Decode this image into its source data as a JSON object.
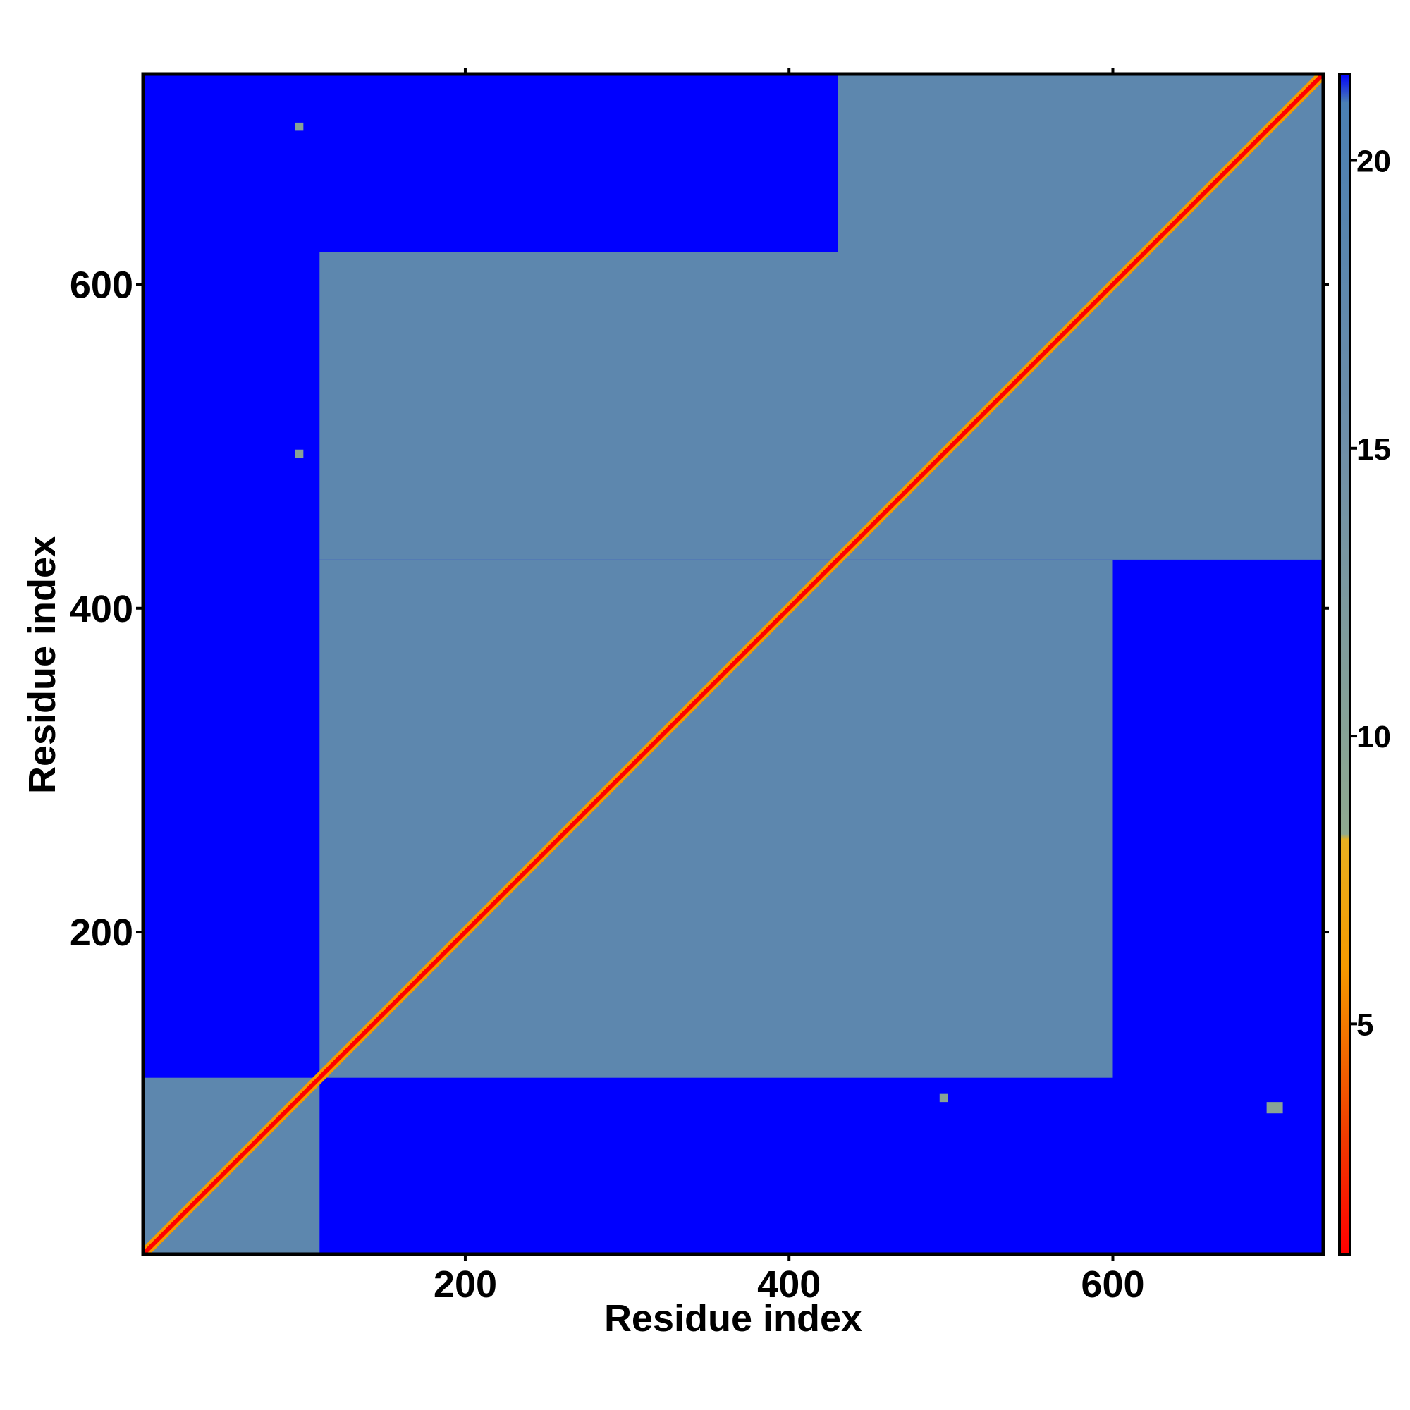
{
  "chart_data": {
    "type": "heatmap",
    "title": "",
    "xlabel": "Residue index",
    "ylabel": "Residue index",
    "xlim": [
      1,
      730
    ],
    "ylim": [
      1,
      730
    ],
    "xticks": [
      200,
      400,
      600
    ],
    "yticks": [
      200,
      400,
      600
    ],
    "colorbar": {
      "min": 1,
      "max": 21.5,
      "ticks": [
        5,
        10,
        15,
        20
      ],
      "stops": [
        {
          "value": 1,
          "color": "#ff0000"
        },
        {
          "value": 3,
          "color": "#f03a00"
        },
        {
          "value": 6,
          "color": "#f59a00"
        },
        {
          "value": 8.2,
          "color": "#e8b020"
        },
        {
          "value": 8.3,
          "color": "#8fa890"
        },
        {
          "value": 15,
          "color": "#6f8fa8"
        },
        {
          "value": 21,
          "color": "#4a7fb3"
        },
        {
          "value": 21.5,
          "color": "#0000ff"
        }
      ]
    },
    "background_value": 21.5,
    "background_color": "#0000ff",
    "diagonal_value": 1,
    "contact_regions": [
      {
        "x_range": [
          1,
          110
        ],
        "y_range": [
          1,
          110
        ],
        "value": 18,
        "description_free": true
      },
      {
        "x_range": [
          110,
          430
        ],
        "y_range": [
          110,
          430
        ],
        "value": 18
      },
      {
        "x_range": [
          430,
          730
        ],
        "y_range": [
          430,
          730
        ],
        "value": 18
      },
      {
        "x_range": [
          110,
          430
        ],
        "y_range": [
          430,
          620
        ],
        "value": 18
      },
      {
        "x_range": [
          430,
          600
        ],
        "y_range": [
          110,
          430
        ],
        "value": 18
      },
      {
        "x_range": [
          95,
          100
        ],
        "y_range": [
          695,
          700
        ],
        "value": 10
      },
      {
        "x_range": [
          95,
          100
        ],
        "y_range": [
          493,
          498
        ],
        "value": 10
      },
      {
        "x_range": [
          493,
          498
        ],
        "y_range": [
          95,
          100
        ],
        "value": 10
      },
      {
        "x_range": [
          695,
          705
        ],
        "y_range": [
          88,
          95
        ],
        "value": 10
      }
    ]
  }
}
